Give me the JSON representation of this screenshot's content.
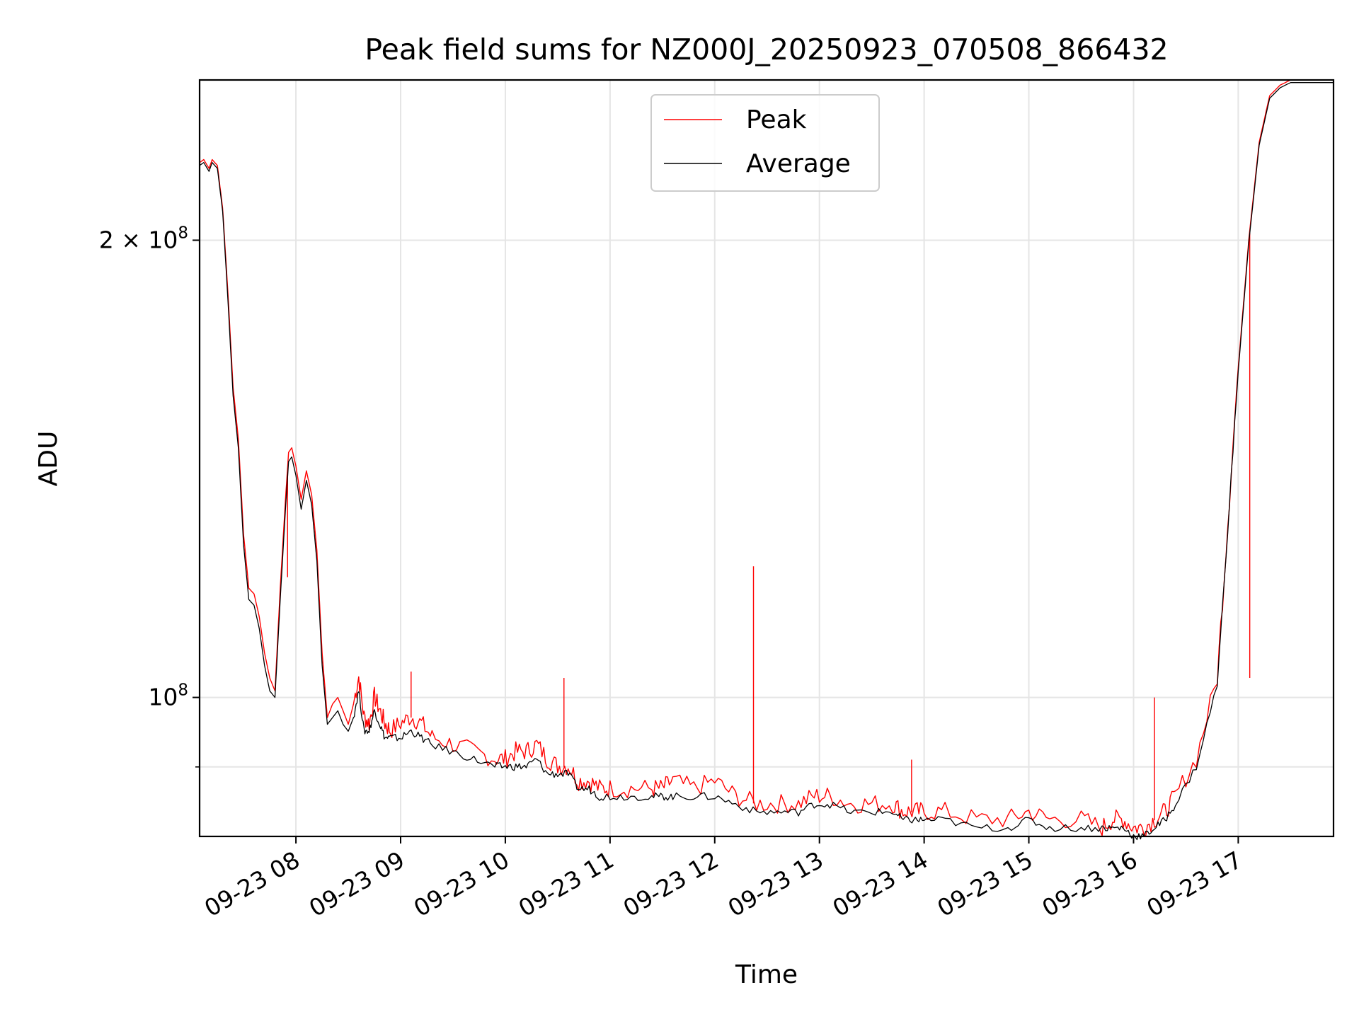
{
  "chart_data": {
    "type": "line",
    "title": "Peak field sums for NZ000J_20250923_070508_866432",
    "xlabel": "Time",
    "ylabel": "ADU",
    "y_scale": "log",
    "ylim": [
      81000000,
      255000000
    ],
    "xlim_hours": [
      7.08,
      17.91
    ],
    "x_ticks": [
      {
        "hour": 8,
        "label": "09-23 08"
      },
      {
        "hour": 9,
        "label": "09-23 09"
      },
      {
        "hour": 10,
        "label": "09-23 10"
      },
      {
        "hour": 11,
        "label": "09-23 11"
      },
      {
        "hour": 12,
        "label": "09-23 12"
      },
      {
        "hour": 13,
        "label": "09-23 13"
      },
      {
        "hour": 14,
        "label": "09-23 14"
      },
      {
        "hour": 15,
        "label": "09-23 15"
      },
      {
        "hour": 16,
        "label": "09-23 16"
      },
      {
        "hour": 17,
        "label": "09-23 17"
      }
    ],
    "y_ticks": [
      {
        "value": 200000000,
        "mant": "2 × 10",
        "exp": "8"
      },
      {
        "value": 100000000,
        "mant": "10",
        "exp": "8"
      }
    ],
    "y_minor_ticks": [
      90000000
    ],
    "grid": true,
    "legend_position": "upper-center",
    "series": [
      {
        "name": "Peak",
        "color": "#ff0000",
        "x_hours": [
          7.08,
          7.12,
          7.17,
          7.2,
          7.25,
          7.3,
          7.35,
          7.4,
          7.45,
          7.5,
          7.55,
          7.6,
          7.65,
          7.7,
          7.75,
          7.8,
          7.85,
          7.9,
          7.93,
          7.96,
          8.0,
          8.05,
          8.1,
          8.15,
          8.2,
          8.25,
          8.3,
          8.35,
          8.4,
          8.45,
          8.5,
          8.55,
          8.6,
          8.65,
          8.7,
          8.75,
          8.8,
          8.85,
          8.9,
          9.0,
          9.1,
          9.2,
          9.3,
          9.5,
          9.7,
          9.9,
          10.0,
          10.1,
          10.2,
          10.3,
          10.4,
          10.5,
          10.6,
          10.7,
          10.8,
          10.9,
          11.0,
          11.2,
          11.4,
          11.5,
          11.6,
          11.8,
          12.0,
          12.2,
          12.4,
          12.6,
          12.8,
          12.95,
          13.1,
          13.3,
          13.5,
          13.7,
          13.8,
          13.9,
          14.0,
          14.2,
          14.5,
          14.8,
          15.0,
          15.2,
          15.5,
          15.7,
          15.8,
          15.9,
          16.0,
          16.1,
          16.2,
          16.3,
          16.4,
          16.6,
          16.8,
          16.9,
          17.0,
          17.1,
          17.2,
          17.3,
          17.4,
          17.5,
          17.6,
          17.7,
          17.8,
          17.91
        ],
        "values": [
          225000000,
          226000000,
          223000000,
          226000000,
          224000000,
          210000000,
          185000000,
          160000000,
          148000000,
          128000000,
          118000000,
          117000000,
          113000000,
          107000000,
          103000000,
          101000000,
          118000000,
          135000000,
          145000000,
          146000000,
          142000000,
          135000000,
          141000000,
          136000000,
          125000000,
          107000000,
          97000000,
          99000000,
          100000000,
          98000000,
          96000000,
          99000000,
          103000000,
          97000000,
          96000000,
          100000000,
          98000000,
          96000000,
          95000000,
          96000000,
          97000000,
          96000000,
          94000000,
          93000000,
          92000000,
          91000000,
          91000000,
          92000000,
          92000000,
          93000000,
          91000000,
          90000000,
          90000000,
          88000000,
          88000000,
          87000000,
          87000000,
          87000000,
          87000000,
          87000000,
          88000000,
          87000000,
          88000000,
          86000000,
          85000000,
          85000000,
          85000000,
          86000000,
          86000000,
          85000000,
          85000000,
          85000000,
          84000000,
          84000000,
          84000000,
          84000000,
          83000000,
          83000000,
          84000000,
          83000000,
          83000000,
          82000000,
          83000000,
          83000000,
          82000000,
          82000000,
          83000000,
          84000000,
          86000000,
          91000000,
          103000000,
          130000000,
          165000000,
          200000000,
          232000000,
          249000000,
          253000000,
          255000000,
          255000000,
          255000000,
          255000000,
          255000000
        ],
        "spikes": [
          {
            "hour": 7.92,
            "value": 120000000
          },
          {
            "hour": 9.1,
            "value": 104000000
          },
          {
            "hour": 10.56,
            "value": 103000000
          },
          {
            "hour": 12.37,
            "value": 122000000
          },
          {
            "hour": 13.88,
            "value": 91000000
          },
          {
            "hour": 16.2,
            "value": 100000000
          },
          {
            "hour": 17.11,
            "value": 103000000
          }
        ]
      },
      {
        "name": "Average",
        "color": "#000000",
        "x_hours": [
          7.08,
          7.12,
          7.17,
          7.2,
          7.25,
          7.3,
          7.35,
          7.4,
          7.45,
          7.5,
          7.55,
          7.6,
          7.65,
          7.7,
          7.75,
          7.8,
          7.85,
          7.9,
          7.93,
          7.96,
          8.0,
          8.05,
          8.1,
          8.15,
          8.2,
          8.25,
          8.3,
          8.35,
          8.4,
          8.45,
          8.5,
          8.55,
          8.6,
          8.65,
          8.7,
          8.75,
          8.8,
          8.85,
          8.9,
          9.0,
          9.1,
          9.2,
          9.3,
          9.5,
          9.7,
          9.9,
          10.0,
          10.1,
          10.2,
          10.3,
          10.4,
          10.5,
          10.6,
          10.7,
          10.8,
          10.9,
          11.0,
          11.2,
          11.4,
          11.5,
          11.6,
          11.8,
          12.0,
          12.2,
          12.4,
          12.6,
          12.8,
          12.95,
          13.1,
          13.3,
          13.5,
          13.7,
          13.8,
          13.9,
          14.0,
          14.2,
          14.5,
          14.8,
          15.0,
          15.2,
          15.5,
          15.7,
          15.8,
          15.9,
          16.0,
          16.1,
          16.2,
          16.3,
          16.4,
          16.6,
          16.8,
          16.9,
          17.0,
          17.1,
          17.2,
          17.3,
          17.4,
          17.5,
          17.6,
          17.7,
          17.8,
          17.91
        ],
        "values": [
          224000000,
          225000000,
          222000000,
          225000000,
          223000000,
          209000000,
          183000000,
          158000000,
          146000000,
          126000000,
          116000000,
          115000000,
          111000000,
          105000000,
          101000000,
          100000000,
          116000000,
          133000000,
          143000000,
          144000000,
          140000000,
          133000000,
          139000000,
          134000000,
          123000000,
          105000000,
          96000000,
          97000000,
          98000000,
          96000000,
          95000000,
          97000000,
          101000000,
          95000000,
          95000000,
          98000000,
          96000000,
          94000000,
          94000000,
          94000000,
          95000000,
          94000000,
          93000000,
          92000000,
          91000000,
          90000000,
          90000000,
          90000000,
          90000000,
          91000000,
          89000000,
          89000000,
          89000000,
          87000000,
          87000000,
          86000000,
          86000000,
          86000000,
          86000000,
          86000000,
          86000000,
          86000000,
          86000000,
          85000000,
          84000000,
          84000000,
          84000000,
          85000000,
          85000000,
          84000000,
          84000000,
          84000000,
          83000000,
          83000000,
          83000000,
          83000000,
          82000000,
          82000000,
          83000000,
          82000000,
          82000000,
          82000000,
          82000000,
          82000000,
          81000000,
          81000000,
          82000000,
          83000000,
          85000000,
          90000000,
          102000000,
          129000000,
          164000000,
          199000000,
          231000000,
          248000000,
          252000000,
          254000000,
          254000000,
          254000000,
          254000000,
          254000000
        ]
      }
    ]
  }
}
